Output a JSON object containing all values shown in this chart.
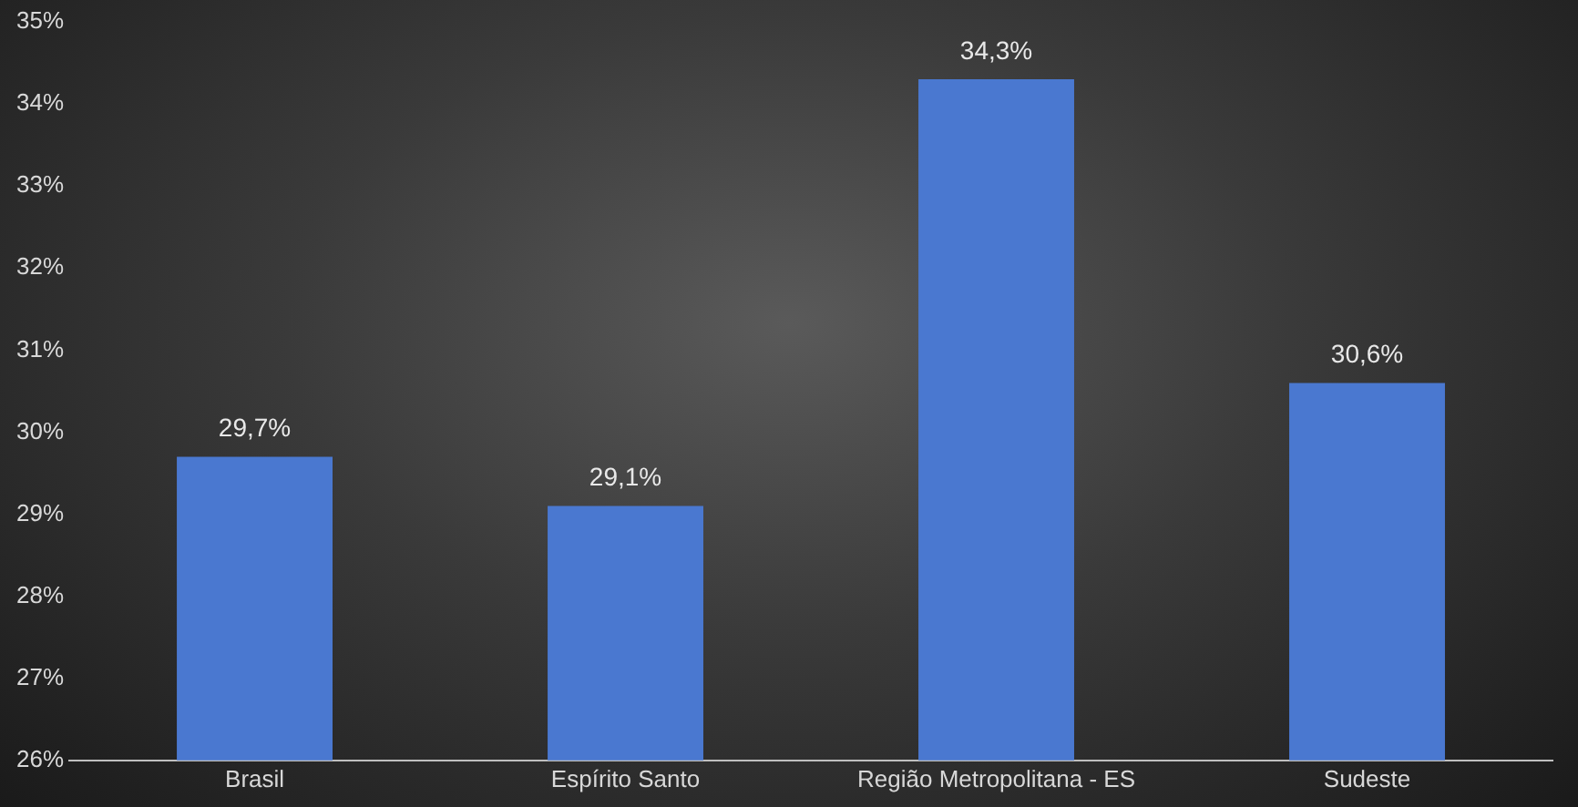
{
  "chart_data": {
    "type": "bar",
    "categories": [
      "Brasil",
      "Espírito Santo",
      "Região Metropolitana - ES",
      "Sudeste"
    ],
    "values": [
      29.7,
      29.1,
      34.3,
      30.6
    ],
    "value_labels": [
      "29,7%",
      "29,1%",
      "34,3%",
      "30,6%"
    ],
    "color": "#4a78d0",
    "ylim": [
      26,
      35
    ],
    "yticks": [
      {
        "value": 26,
        "label": "26%"
      },
      {
        "value": 27,
        "label": "27%"
      },
      {
        "value": 28,
        "label": "28%"
      },
      {
        "value": 29,
        "label": "29%"
      },
      {
        "value": 30,
        "label": "30%"
      },
      {
        "value": 31,
        "label": "31%"
      },
      {
        "value": 32,
        "label": "32%"
      },
      {
        "value": 33,
        "label": "33%"
      },
      {
        "value": 34,
        "label": "34%"
      },
      {
        "value": 35,
        "label": "35%"
      }
    ],
    "grid": false,
    "legend": false
  }
}
